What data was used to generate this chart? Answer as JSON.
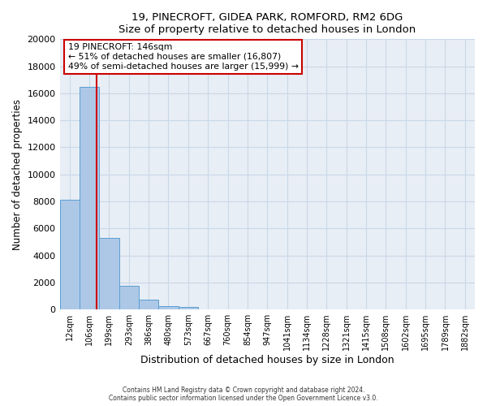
{
  "title1": "19, PINECROFT, GIDEA PARK, ROMFORD, RM2 6DG",
  "title2": "Size of property relative to detached houses in London",
  "xlabel": "Distribution of detached houses by size in London",
  "ylabel": "Number of detached properties",
  "bar_labels": [
    "12sqm",
    "106sqm",
    "199sqm",
    "293sqm",
    "386sqm",
    "480sqm",
    "573sqm",
    "667sqm",
    "760sqm",
    "854sqm",
    "947sqm",
    "1041sqm",
    "1134sqm",
    "1228sqm",
    "1321sqm",
    "1415sqm",
    "1508sqm",
    "1602sqm",
    "1695sqm",
    "1789sqm",
    "1882sqm"
  ],
  "bar_values": [
    8100,
    16500,
    5300,
    1750,
    750,
    275,
    175,
    0,
    0,
    0,
    0,
    0,
    0,
    0,
    0,
    0,
    0,
    0,
    0,
    0,
    0
  ],
  "bar_color": "#adc8e6",
  "bar_edge_color": "#5a9fd4",
  "annotation_text_line1": "19 PINECROFT: 146sqm",
  "annotation_text_line2": "← 51% of detached houses are smaller (16,807)",
  "annotation_text_line3": "49% of semi-detached houses are larger (15,999) →",
  "annotation_box_color": "#ffffff",
  "annotation_box_edge": "#cc0000",
  "vline_color": "#cc0000",
  "vline_x": 1.37,
  "ylim": [
    0,
    20000
  ],
  "yticks": [
    0,
    2000,
    4000,
    6000,
    8000,
    10000,
    12000,
    14000,
    16000,
    18000,
    20000
  ],
  "ytick_labels": [
    "0",
    "2000",
    "4000",
    "6000",
    "8000",
    "10000",
    "12000",
    "14000",
    "16000",
    "18000",
    "20000"
  ],
  "footer1": "Contains HM Land Registry data © Crown copyright and database right 2024.",
  "footer2": "Contains public sector information licensed under the Open Government Licence v3.0.",
  "grid_color": "#c8d8e8",
  "bg_color": "#e8eef5"
}
